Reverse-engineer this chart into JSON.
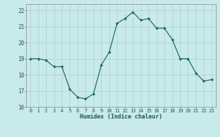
{
  "x": [
    0,
    1,
    2,
    3,
    4,
    5,
    6,
    7,
    8,
    9,
    10,
    11,
    12,
    13,
    14,
    15,
    16,
    17,
    18,
    19,
    20,
    21,
    22,
    23
  ],
  "y": [
    19.0,
    19.0,
    18.9,
    18.5,
    18.5,
    17.1,
    16.6,
    16.5,
    16.8,
    18.6,
    19.4,
    21.2,
    21.5,
    21.9,
    21.4,
    21.5,
    20.9,
    20.9,
    20.2,
    19.0,
    19.0,
    18.1,
    17.6,
    17.7
  ],
  "xlabel": "Humidex (Indice chaleur)",
  "ylim": [
    16,
    22.4
  ],
  "xlim": [
    -0.5,
    23.5
  ],
  "yticks": [
    16,
    17,
    18,
    19,
    20,
    21,
    22
  ],
  "xticks": [
    0,
    1,
    2,
    3,
    4,
    5,
    6,
    7,
    8,
    9,
    10,
    11,
    12,
    13,
    14,
    15,
    16,
    17,
    18,
    19,
    20,
    21,
    22,
    23
  ],
  "line_color": "#1f6b5a",
  "marker_color": "#1f6b5a",
  "bg_color": "#c8eaea",
  "grid_color": "#aacccc",
  "plot_bg": "#c8eaea"
}
